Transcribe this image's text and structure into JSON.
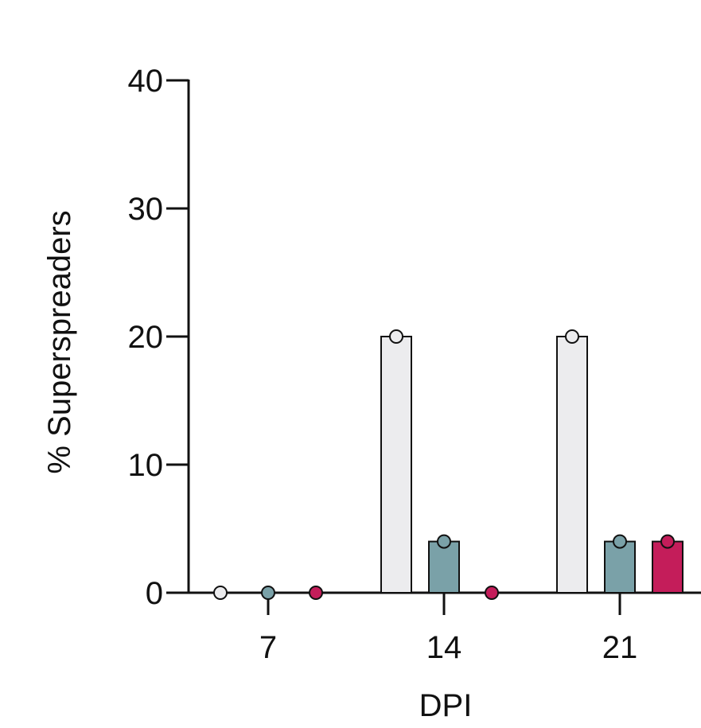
{
  "chart_data": {
    "type": "bar",
    "xlabel": "DPI",
    "ylabel": "% Superspreaders",
    "categories": [
      "7",
      "14",
      "21"
    ],
    "ylim": [
      0,
      40
    ],
    "yticks": [
      0,
      10,
      20,
      30,
      40
    ],
    "series": [
      {
        "values": [
          0,
          20,
          20
        ],
        "color": "#ececee"
      },
      {
        "values": [
          0,
          4,
          4
        ],
        "color": "#7aa1a8"
      },
      {
        "values": [
          0,
          0,
          4
        ],
        "color": "#c41d5a"
      }
    ],
    "grid": false,
    "legend": "none"
  }
}
